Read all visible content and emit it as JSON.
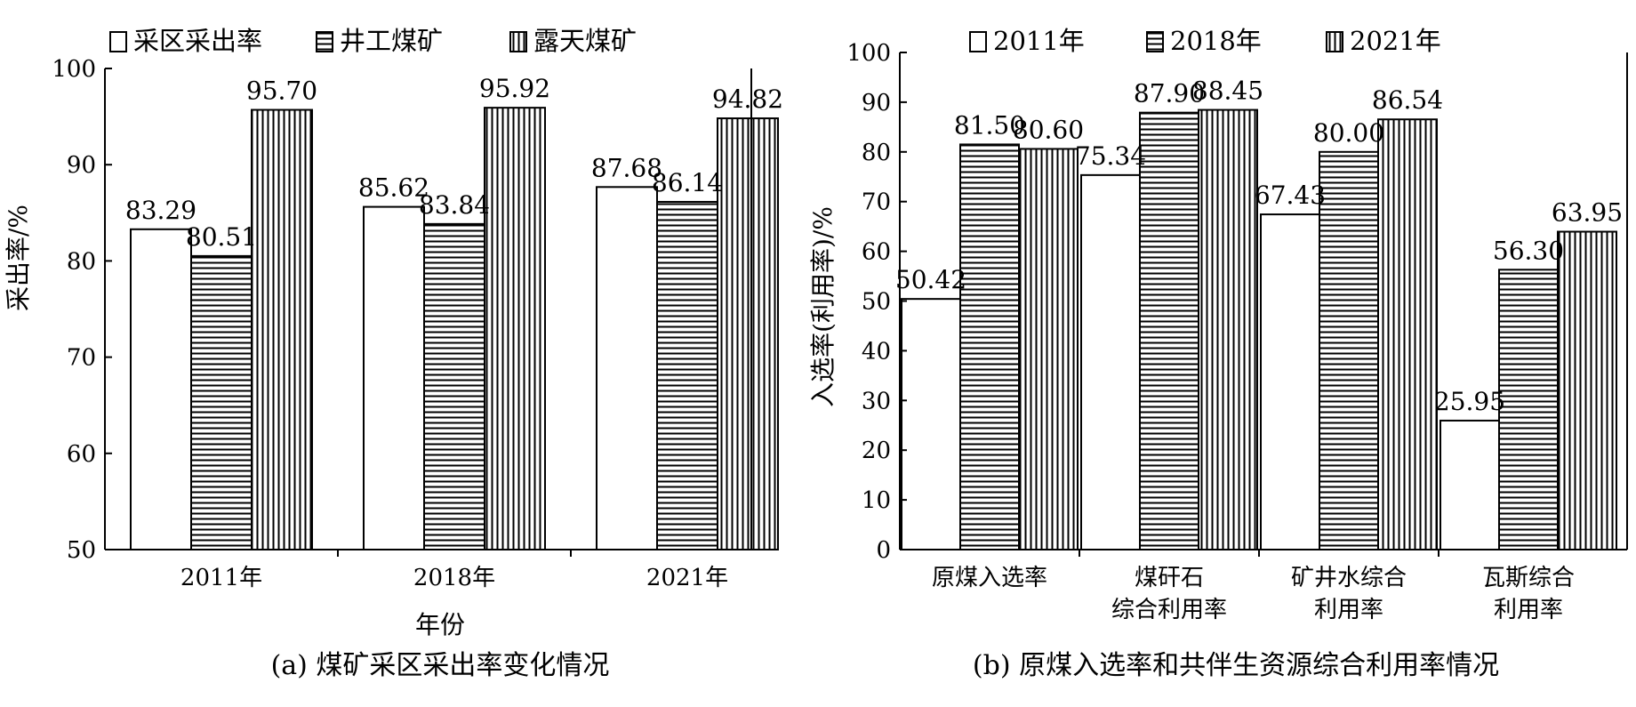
{
  "charts": [
    {
      "type": "bar",
      "caption": "(a) 煤矿采区采出率变化情况",
      "xlabel": "年份",
      "ylabel": "采出率/%",
      "ylim": [
        50,
        100
      ],
      "yticks": [
        "50",
        "60",
        "70",
        "80",
        "90",
        "100"
      ],
      "categories": [
        "2011年",
        "2018年",
        "2021年"
      ],
      "series": [
        {
          "name": "采区采出率",
          "pattern": "blank",
          "values": [
            83.29,
            85.62,
            87.68
          ],
          "labels": [
            "83.29",
            "85.62",
            "87.68"
          ]
        },
        {
          "name": "井工煤矿",
          "pattern": "horizontal",
          "values": [
            80.51,
            83.84,
            86.14
          ],
          "labels": [
            "80.51",
            "83.84",
            "86.14"
          ]
        },
        {
          "name": "露天煤矿",
          "pattern": "vertical",
          "values": [
            95.7,
            95.92,
            94.82
          ],
          "labels": [
            "95.70",
            "95.92",
            "94.82"
          ]
        }
      ],
      "legend_position": "top"
    },
    {
      "type": "bar",
      "caption": "(b) 原煤入选率和共伴生资源综合利用率情况",
      "xlabel": "",
      "ylabel": "入选率(利用率)/%",
      "ylim": [
        0,
        100
      ],
      "yticks": [
        "0",
        "10",
        "20",
        "30",
        "40",
        "50",
        "60",
        "70",
        "80",
        "90",
        "100"
      ],
      "categories": [
        [
          "原煤入选率"
        ],
        [
          "煤矸石",
          "综合利用率"
        ],
        [
          "矿井水综合",
          "利用率"
        ],
        [
          "瓦斯综合",
          "利用率"
        ]
      ],
      "series": [
        {
          "name": "2011年",
          "pattern": "blank",
          "values": [
            50.42,
            75.34,
            67.43,
            25.95
          ],
          "labels": [
            "50.42",
            "75.34",
            "67.43",
            "25.95"
          ]
        },
        {
          "name": "2018年",
          "pattern": "horizontal",
          "values": [
            81.5,
            87.9,
            80.0,
            56.3
          ],
          "labels": [
            "81.50",
            "87.90",
            "80.00",
            "56.30"
          ]
        },
        {
          "name": "2021年",
          "pattern": "vertical",
          "values": [
            80.6,
            88.45,
            86.54,
            63.95
          ],
          "labels": [
            "80.60",
            "88.45",
            "86.54",
            "63.95"
          ]
        }
      ],
      "legend_position": "top"
    }
  ],
  "chart_data": [
    {
      "type": "bar",
      "title": "(a) 煤矿采区采出率变化情况",
      "xlabel": "年份",
      "ylabel": "采出率/%",
      "ylim": [
        50,
        100
      ],
      "categories": [
        "2011年",
        "2018年",
        "2021年"
      ],
      "series": [
        {
          "name": "采区采出率",
          "values": [
            83.29,
            85.62,
            87.68
          ]
        },
        {
          "name": "井工煤矿",
          "values": [
            80.51,
            83.84,
            86.14
          ]
        },
        {
          "name": "露天煤矿",
          "values": [
            95.7,
            95.92,
            94.82
          ]
        }
      ],
      "grid": false,
      "legend": "top"
    },
    {
      "type": "bar",
      "title": "(b) 原煤入选率和共伴生资源综合利用率情况",
      "xlabel": "",
      "ylabel": "入选率(利用率)/%",
      "ylim": [
        0,
        100
      ],
      "categories": [
        "原煤入选率",
        "煤矸石综合利用率",
        "矿井水综合利用率",
        "瓦斯综合利用率"
      ],
      "series": [
        {
          "name": "2011年",
          "values": [
            50.42,
            75.34,
            67.43,
            25.95
          ]
        },
        {
          "name": "2018年",
          "values": [
            81.5,
            87.9,
            80.0,
            56.3
          ]
        },
        {
          "name": "2021年",
          "values": [
            80.6,
            88.45,
            86.54,
            63.95
          ]
        }
      ],
      "grid": false,
      "legend": "top"
    }
  ]
}
